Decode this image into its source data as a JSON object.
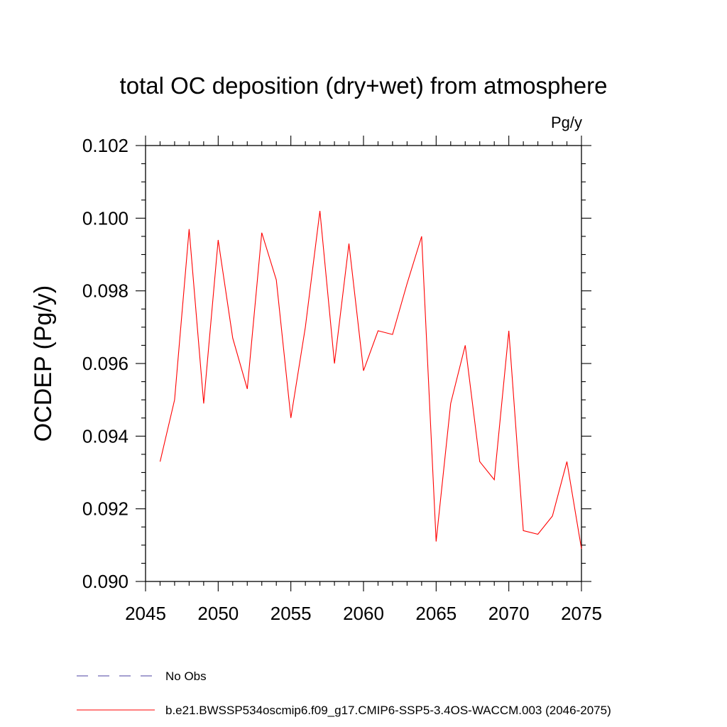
{
  "chart_data": {
    "type": "line",
    "title": "total OC deposition (dry+wet) from atmosphere",
    "units": "Pg/y",
    "xlabel": "",
    "ylabel": "OCDEP  (Pg/y)",
    "xlim": [
      2045,
      2075
    ],
    "ylim": [
      0.09,
      0.102
    ],
    "xticks": [
      2045,
      2050,
      2055,
      2060,
      2065,
      2070,
      2075
    ],
    "xtick_labels": [
      "2045",
      "2050",
      "2055",
      "2060",
      "2065",
      "2070",
      "2075"
    ],
    "yticks": [
      0.09,
      0.092,
      0.094,
      0.096,
      0.098,
      0.1,
      0.102
    ],
    "ytick_labels": [
      "0.090",
      "0.092",
      "0.094",
      "0.096",
      "0.098",
      "0.100",
      "0.102"
    ],
    "grid": false,
    "series": [
      {
        "name": "b.e21.BWSSP534oscmip6.f09_g17.CMIP6-SSP5-3.4OS-WACCM.003 (2046-2075)",
        "color": "#ff0000",
        "style": "solid",
        "x": [
          2046,
          2047,
          2048,
          2049,
          2050,
          2051,
          2052,
          2053,
          2054,
          2055,
          2056,
          2057,
          2058,
          2059,
          2060,
          2061,
          2062,
          2063,
          2064,
          2065,
          2066,
          2067,
          2068,
          2069,
          2070,
          2071,
          2072,
          2073,
          2074,
          2075
        ],
        "y": [
          0.0933,
          0.095,
          0.0997,
          0.0949,
          0.0994,
          0.0967,
          0.0953,
          0.0996,
          0.0983,
          0.0945,
          0.097,
          0.1002,
          0.096,
          0.0993,
          0.0958,
          0.0969,
          0.0968,
          0.0982,
          0.0995,
          0.0911,
          0.0949,
          0.0965,
          0.0933,
          0.0928,
          0.0969,
          0.0914,
          0.0913,
          0.0918,
          0.0933,
          0.0909
        ]
      }
    ],
    "legend": [
      {
        "label": "No Obs",
        "color": "#4b3fa0",
        "style": "dashed"
      },
      {
        "label": "b.e21.BWSSP534oscmip6.f09_g17.CMIP6-SSP5-3.4OS-WACCM.003 (2046-2075)",
        "color": "#ff0000",
        "style": "solid"
      }
    ],
    "legend_position": "bottom-left"
  }
}
